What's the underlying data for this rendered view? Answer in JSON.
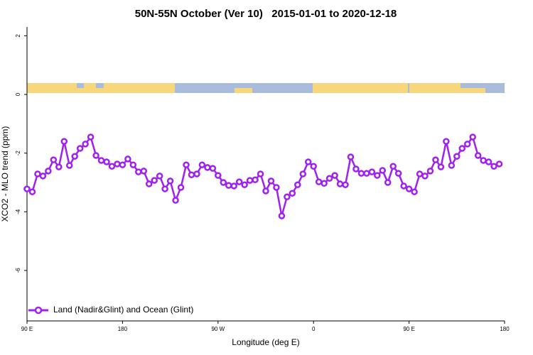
{
  "chart_data": {
    "type": "line",
    "title": "50N-55N October (Ver 10)   2015-01-01 to 2020-12-18",
    "x_label": "Longitude (deg E)",
    "y_label": "XCO2 - MLO trend (ppm)",
    "xlim": [
      90,
      540
    ],
    "ylim": [
      -7.72,
      2.3
    ],
    "xticks": [
      {
        "value": 90,
        "label": "90 E"
      },
      180,
      {
        "value": 270,
        "label": "90 W"
      },
      {
        "value": 360,
        "label": "0"
      },
      {
        "value": 450,
        "label": "90 E"
      },
      {
        "value": 540,
        "label": "180"
      }
    ],
    "yticks": [
      2,
      0,
      -2,
      -4,
      -6
    ],
    "legend": "bottom-left",
    "x": [
      90,
      95,
      100,
      105,
      110,
      115,
      120,
      125,
      130,
      135,
      140,
      145,
      150,
      155,
      160,
      165,
      170,
      175,
      180,
      185,
      190,
      195,
      200,
      205,
      210,
      215,
      220,
      225,
      230,
      235,
      240,
      245,
      250,
      255,
      260,
      265,
      270,
      275,
      280,
      285,
      290,
      295,
      300,
      305,
      310,
      315,
      320,
      325,
      330,
      335,
      340,
      345,
      350,
      355,
      360,
      365,
      370,
      375,
      380,
      385,
      390,
      395,
      400,
      405,
      410,
      415,
      420,
      425,
      430,
      435,
      440,
      445,
      450,
      455,
      460,
      465,
      470,
      475,
      480,
      485,
      490,
      495,
      500,
      505,
      510,
      515,
      520,
      525,
      530,
      535
    ],
    "series": [
      {
        "name": "Land (Nadir&Glint) and Ocean (Glint)",
        "color": "#a020f0",
        "values": [
          -3.22,
          -3.32,
          -2.71,
          -2.78,
          -2.61,
          -2.23,
          -2.47,
          -1.6,
          -2.42,
          -2.11,
          -1.84,
          -1.69,
          -1.45,
          -2.08,
          -2.25,
          -2.3,
          -2.45,
          -2.37,
          -2.4,
          -2.2,
          -2.4,
          -2.64,
          -2.61,
          -3.05,
          -2.93,
          -2.78,
          -3.22,
          -2.95,
          -3.61,
          -3.17,
          -2.4,
          -2.74,
          -2.71,
          -2.4,
          -2.49,
          -2.52,
          -2.76,
          -3.0,
          -3.1,
          -3.12,
          -2.98,
          -3.08,
          -2.93,
          -2.91,
          -2.71,
          -3.29,
          -2.95,
          -3.17,
          -4.14,
          -3.49,
          -3.37,
          -3.08,
          -2.71,
          -2.3,
          -2.45,
          -2.98,
          -3.03,
          -2.86,
          -2.76,
          -3.05,
          -3.08,
          -2.13,
          -2.54,
          -2.69,
          -2.69,
          -2.64,
          -2.76,
          -2.59,
          -3.0,
          -2.45,
          -2.69,
          -3.12,
          -3.22,
          -3.32,
          -2.71,
          -2.78,
          -2.61,
          -2.23,
          -2.47,
          -1.6,
          -2.42,
          -2.11,
          -1.84,
          -1.69,
          -1.45,
          -2.08,
          -2.25,
          -2.3,
          -2.45,
          -2.37
        ]
      }
    ]
  }
}
